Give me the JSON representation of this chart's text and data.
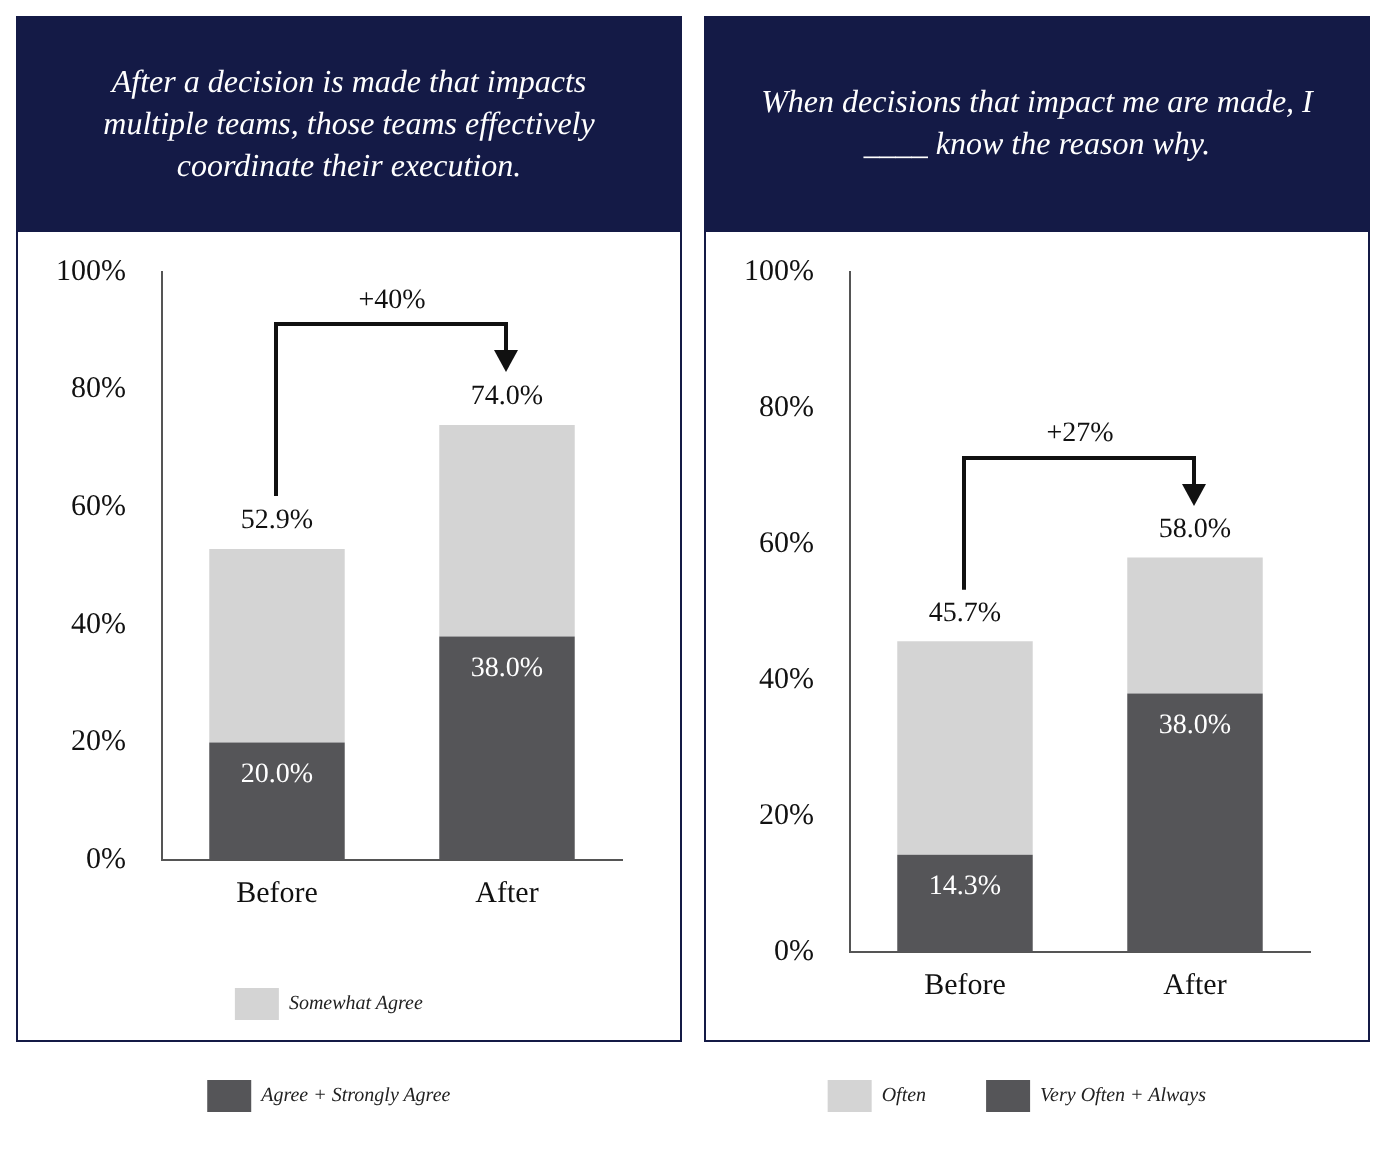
{
  "chart_data": [
    {
      "type": "bar",
      "stacked": true,
      "title": "After a decision is made that impacts multiple teams, those teams effectively coordinate their execution.",
      "categories": [
        "Before",
        "After"
      ],
      "series": [
        {
          "name": "Agree + Strongly Agree",
          "color": "#555558",
          "values": [
            20.0,
            38.0
          ],
          "value_labels": [
            "20.0%",
            "38.0%"
          ]
        },
        {
          "name": "Somewhat Agree",
          "color": "#d4d4d4",
          "values": [
            32.9,
            36.0
          ]
        }
      ],
      "totals": [
        "52.9%",
        "74.0%"
      ],
      "annotations": [
        "+40%"
      ],
      "ylim": [
        0,
        100
      ],
      "yticks": [
        {
          "value": 0,
          "label": "0%"
        },
        {
          "value": 20,
          "label": "20%"
        },
        {
          "value": 40,
          "label": "40%"
        },
        {
          "value": 60,
          "label": "60%"
        },
        {
          "value": 80,
          "label": "80%"
        },
        {
          "value": 100,
          "label": "100%"
        }
      ],
      "grid": false,
      "legend": "bottom"
    },
    {
      "type": "bar",
      "stacked": true,
      "title": "When decisions that impact me are made, I ____ know the reason why.",
      "categories": [
        "Before",
        "After"
      ],
      "series": [
        {
          "name": "Very Often + Always",
          "color": "#555558",
          "values": [
            14.3,
            38.0
          ],
          "value_labels": [
            "14.3%",
            "38.0%"
          ]
        },
        {
          "name": "Often",
          "color": "#d4d4d4",
          "values": [
            31.4,
            20.0
          ]
        }
      ],
      "totals": [
        "45.7%",
        "58.0%"
      ],
      "annotations": [
        "+27%"
      ],
      "ylim": [
        0,
        100
      ],
      "yticks": [
        {
          "value": 0,
          "label": "0%"
        },
        {
          "value": 20,
          "label": "20%"
        },
        {
          "value": 40,
          "label": "40%"
        },
        {
          "value": 60,
          "label": "60%"
        },
        {
          "value": 80,
          "label": "80%"
        },
        {
          "value": 100,
          "label": "100%"
        }
      ],
      "grid": false,
      "legend": "bottom"
    }
  ]
}
